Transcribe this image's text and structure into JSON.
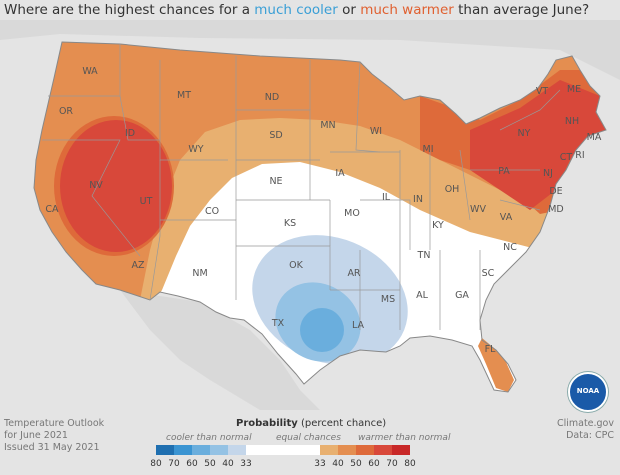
{
  "title": {
    "prefix": "Where are the highest chances for a ",
    "cool": "much cooler",
    "middle": " or ",
    "warm": "much warmer",
    "suffix": " than average June?"
  },
  "states": [
    "WA",
    "OR",
    "CA",
    "NV",
    "ID",
    "MT",
    "WY",
    "UT",
    "AZ",
    "CO",
    "NM",
    "ND",
    "SD",
    "NE",
    "KS",
    "OK",
    "TX",
    "MN",
    "IA",
    "MO",
    "AR",
    "LA",
    "WI",
    "IL",
    "MS",
    "AL",
    "GA",
    "TN",
    "KY",
    "IN",
    "OH",
    "MI",
    "FL",
    "SC",
    "NC",
    "VA",
    "WV",
    "PA",
    "NY",
    "VT",
    "NH",
    "ME",
    "MA",
    "CT",
    "RI",
    "NJ",
    "DE",
    "MD"
  ],
  "footer": {
    "line1": "Temperature Outlook",
    "line2": "for June 2021",
    "line3": "Issued 31 May 2021",
    "credit1": "Climate.gov",
    "credit2": "Data: CPC"
  },
  "legend": {
    "title_bold": "Probability",
    "title_rest": " (percent chance)",
    "cool_label": "cooler than normal",
    "equal_label": "equal chances",
    "warm_label": "warmer than normal",
    "cool_ticks": [
      "80",
      "70",
      "60",
      "50",
      "40",
      "33"
    ],
    "warm_ticks": [
      "33",
      "40",
      "50",
      "60",
      "70",
      "80"
    ],
    "cool_colors": [
      "#1f6fb0",
      "#3a94d2",
      "#6aaedd",
      "#94c2e4",
      "#c4d6ea"
    ],
    "warm_colors": [
      "#e8b070",
      "#e48e50",
      "#de6a3a",
      "#d8483a",
      "#c82828"
    ]
  },
  "logo": "NOAA"
}
